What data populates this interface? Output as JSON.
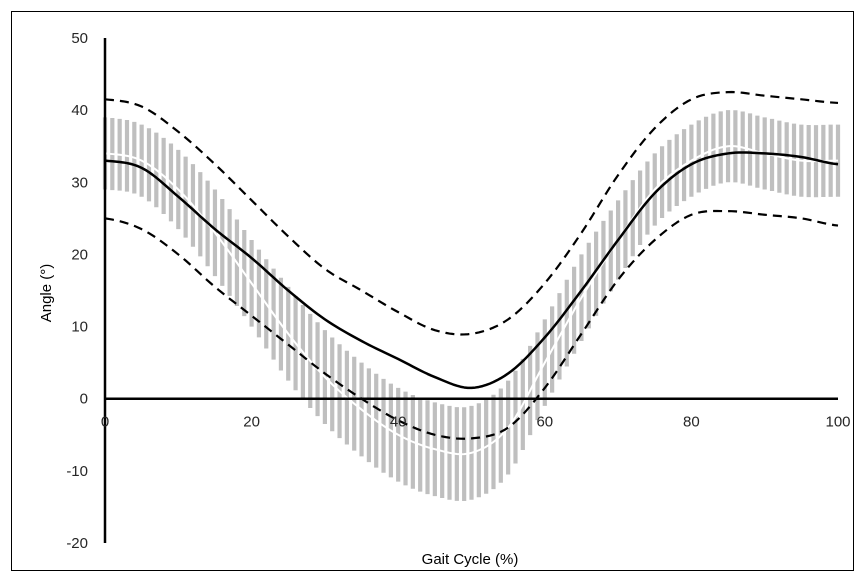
{
  "chart_data": {
    "type": "line",
    "xlabel": "Gait Cycle (%)",
    "ylabel": "Angle (°)",
    "xlim": [
      0,
      100
    ],
    "ylim": [
      -20,
      50
    ],
    "x_ticks": [
      0,
      20,
      40,
      60,
      80,
      100
    ],
    "y_ticks": [
      -20,
      -10,
      0,
      10,
      20,
      30,
      40,
      50
    ],
    "grid": false,
    "legend": "none",
    "x": [
      0,
      5,
      10,
      15,
      20,
      25,
      30,
      35,
      40,
      45,
      50,
      55,
      60,
      65,
      70,
      75,
      80,
      85,
      90,
      95,
      100
    ],
    "series": [
      {
        "role": "band_mean",
        "style": "white-solid",
        "values": [
          34,
          33,
          29,
          23,
          16,
          9,
          3,
          -1.5,
          -5,
          -7,
          -7.5,
          -4,
          5,
          14,
          22,
          29,
          33,
          35,
          34,
          33,
          33
        ],
        "band": [
          5,
          5,
          5.5,
          6,
          6,
          6.5,
          6.5,
          6.5,
          6.5,
          6.5,
          6.5,
          6.5,
          6,
          6,
          5.5,
          5,
          5,
          5,
          5,
          5,
          5
        ]
      },
      {
        "role": "mean",
        "style": "black-solid",
        "values": [
          33,
          32,
          28,
          23.5,
          19.5,
          15,
          11,
          8,
          5.5,
          3,
          1.5,
          3.5,
          8.5,
          15,
          22,
          28.5,
          32.5,
          34,
          34,
          33.5,
          32.5
        ]
      },
      {
        "role": "upper",
        "style": "black-dashed",
        "values": [
          41.5,
          40.5,
          37,
          32.5,
          27.5,
          22.5,
          18,
          15,
          12,
          9.5,
          9,
          11,
          16,
          23,
          31,
          37.5,
          41.5,
          42.5,
          42,
          41.5,
          41
        ]
      },
      {
        "role": "lower",
        "style": "black-dashed",
        "values": [
          25,
          23.5,
          20,
          15.5,
          11.5,
          7.5,
          3.5,
          0,
          -3,
          -5,
          -5.5,
          -4,
          1.5,
          9,
          16.5,
          22,
          25.5,
          26,
          25.5,
          25,
          24
        ]
      }
    ]
  },
  "colors": {
    "band": "#bfbfbf",
    "mean": "#000000",
    "band_mean": "#ffffff",
    "axes": "#000000",
    "frame": "#000000"
  }
}
